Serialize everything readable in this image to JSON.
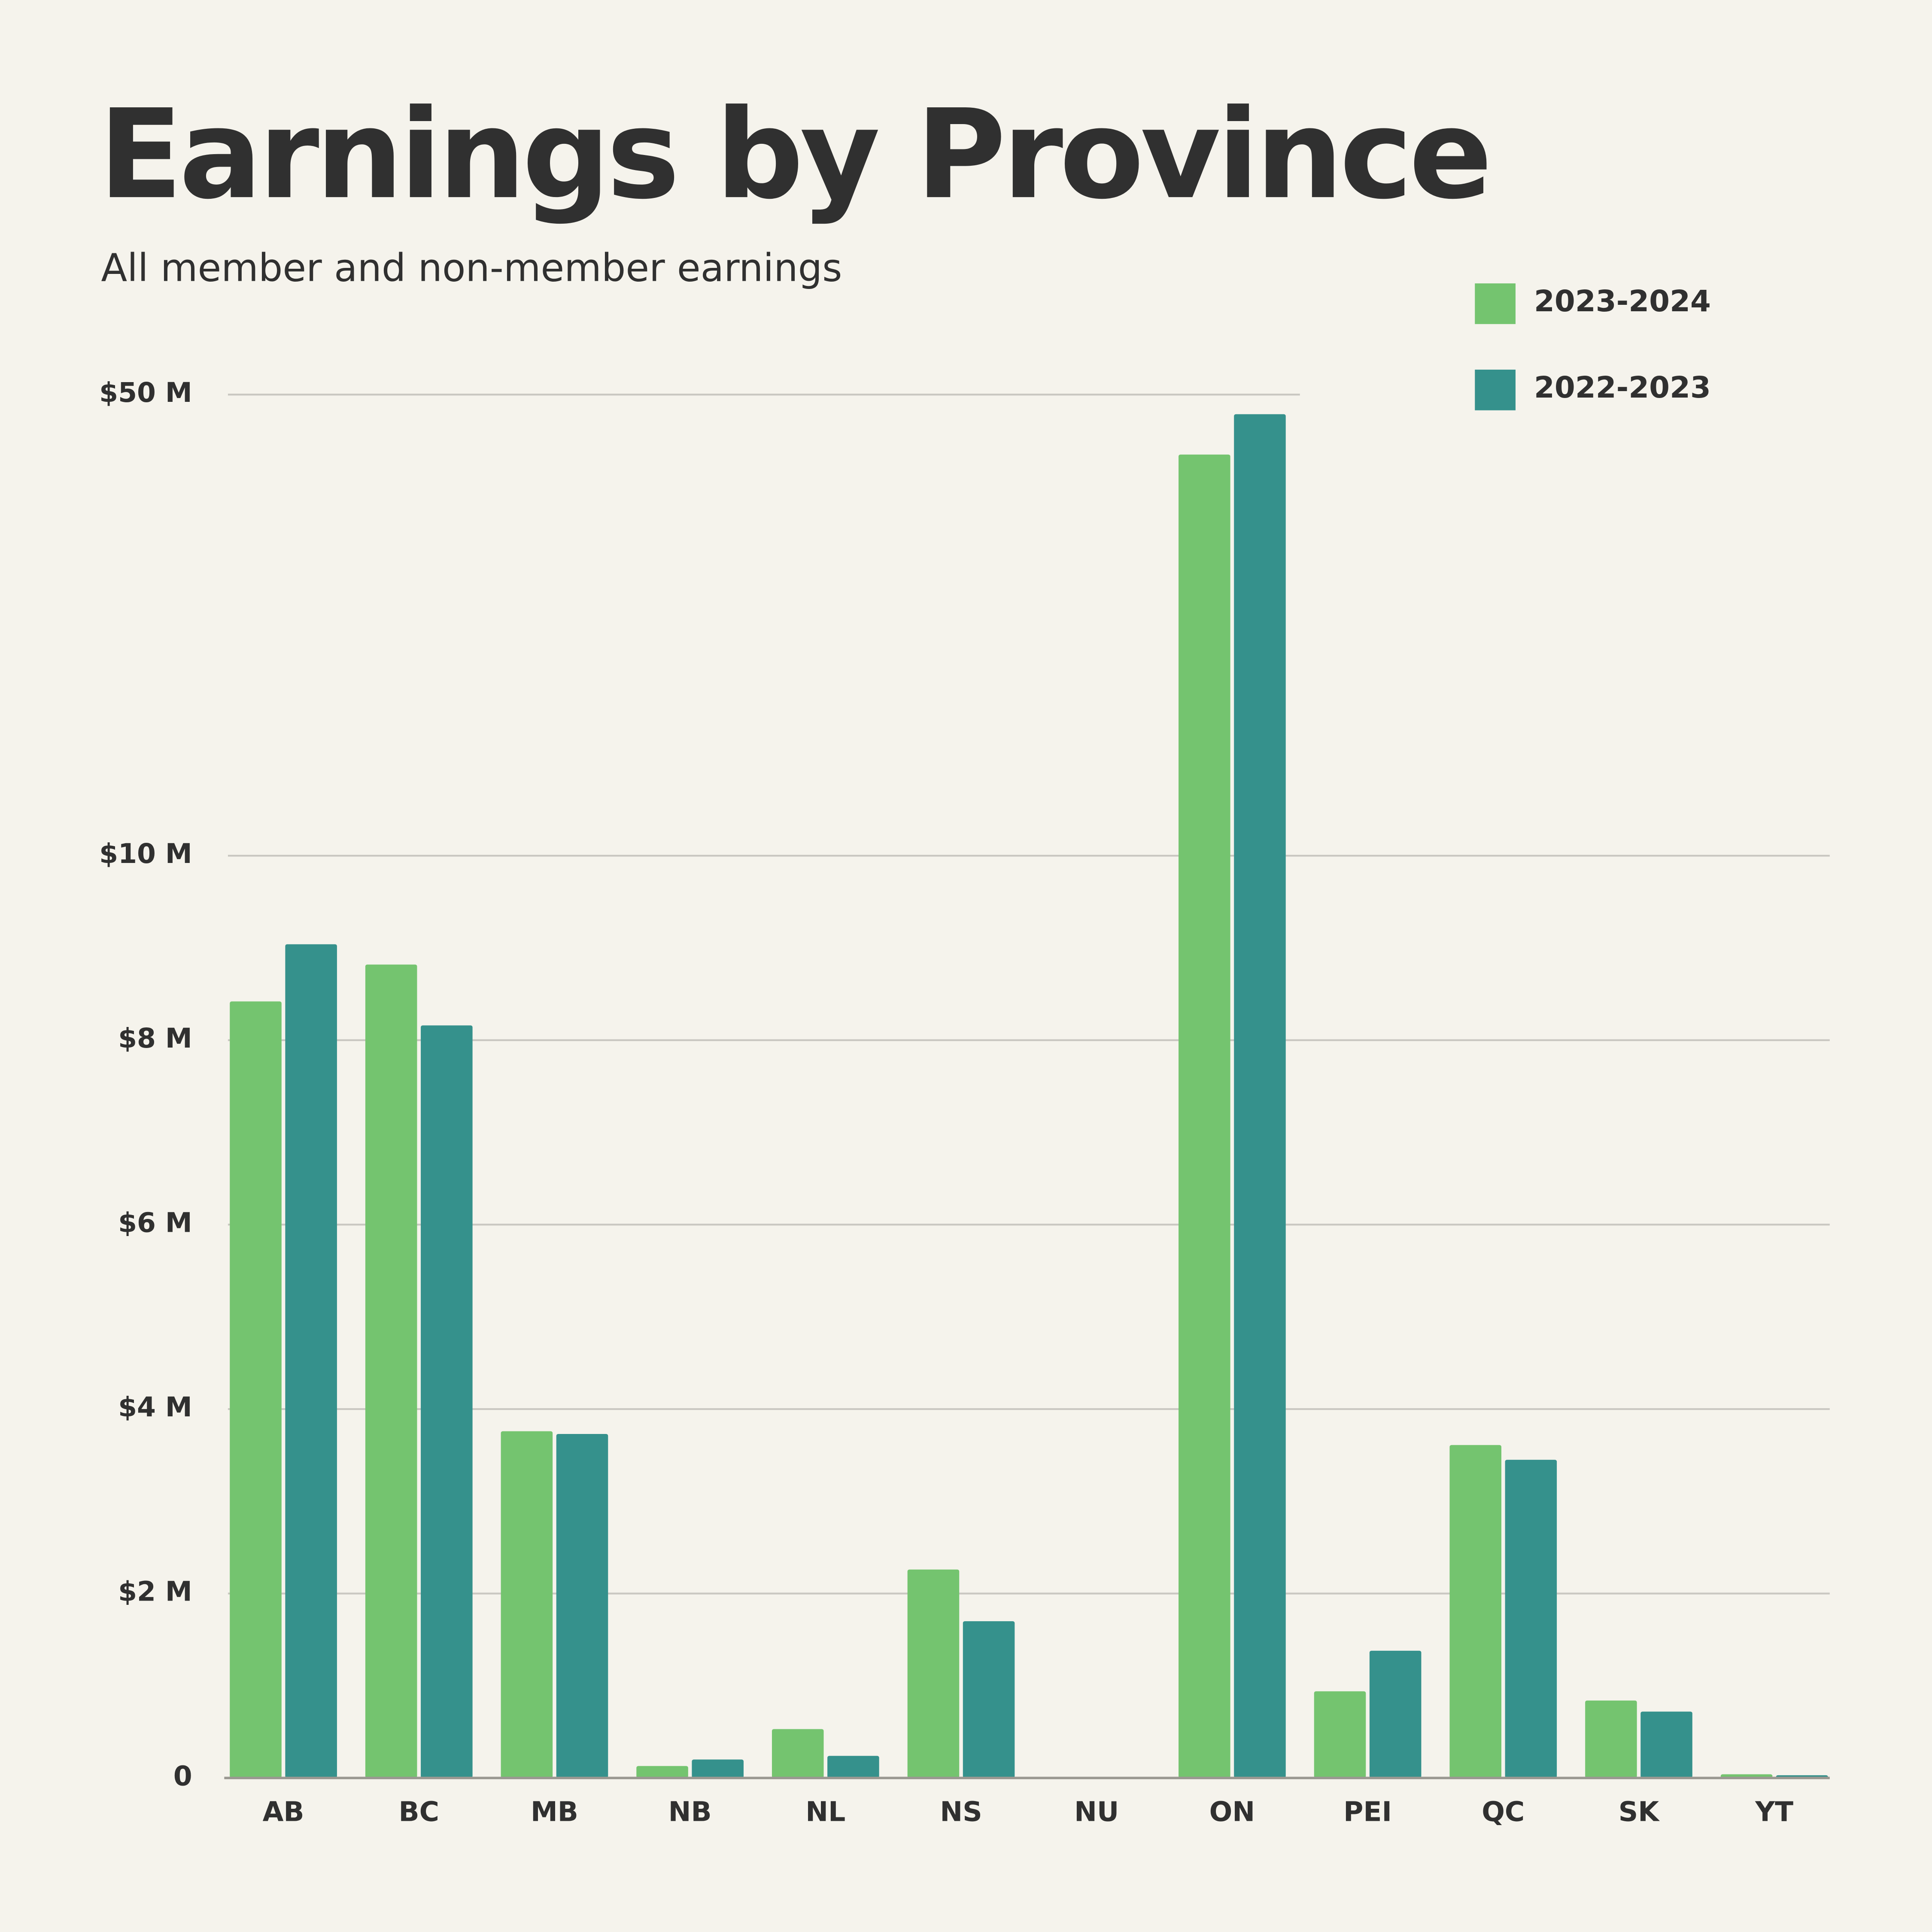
{
  "chart_data": {
    "type": "bar",
    "title": "Earnings by Province",
    "subtitle": "All member and non-member earnings",
    "categories": [
      "AB",
      "BC",
      "MB",
      "NB",
      "NL",
      "NS",
      "NU",
      "ON",
      "PEI",
      "QC",
      "SK",
      "YT"
    ],
    "series": [
      {
        "name": "2023-2024",
        "color": "#74c46f",
        "values": [
          8.42,
          8.82,
          3.76,
          0.13,
          0.53,
          2.26,
          0,
          44.8,
          0.94,
          3.61,
          0.84,
          0.04
        ]
      },
      {
        "name": "2022-2023",
        "color": "#35918c",
        "values": [
          9.04,
          8.16,
          3.73,
          0.2,
          0.24,
          1.7,
          0,
          48.3,
          1.38,
          3.45,
          0.72,
          0.03
        ]
      }
    ],
    "ylim": [
      0,
      50
    ],
    "yticks": [
      0,
      {
        "value": 2,
        "label": "$2 M"
      },
      {
        "value": 4,
        "label": "$4 M"
      },
      {
        "value": 6,
        "label": "$6 M"
      },
      {
        "value": 8,
        "label": "$8 M"
      },
      {
        "value": 10,
        "label": "$10 M"
      },
      {
        "value": 50,
        "label": "$50 M"
      }
    ],
    "grid": true,
    "legend": "top-right"
  }
}
